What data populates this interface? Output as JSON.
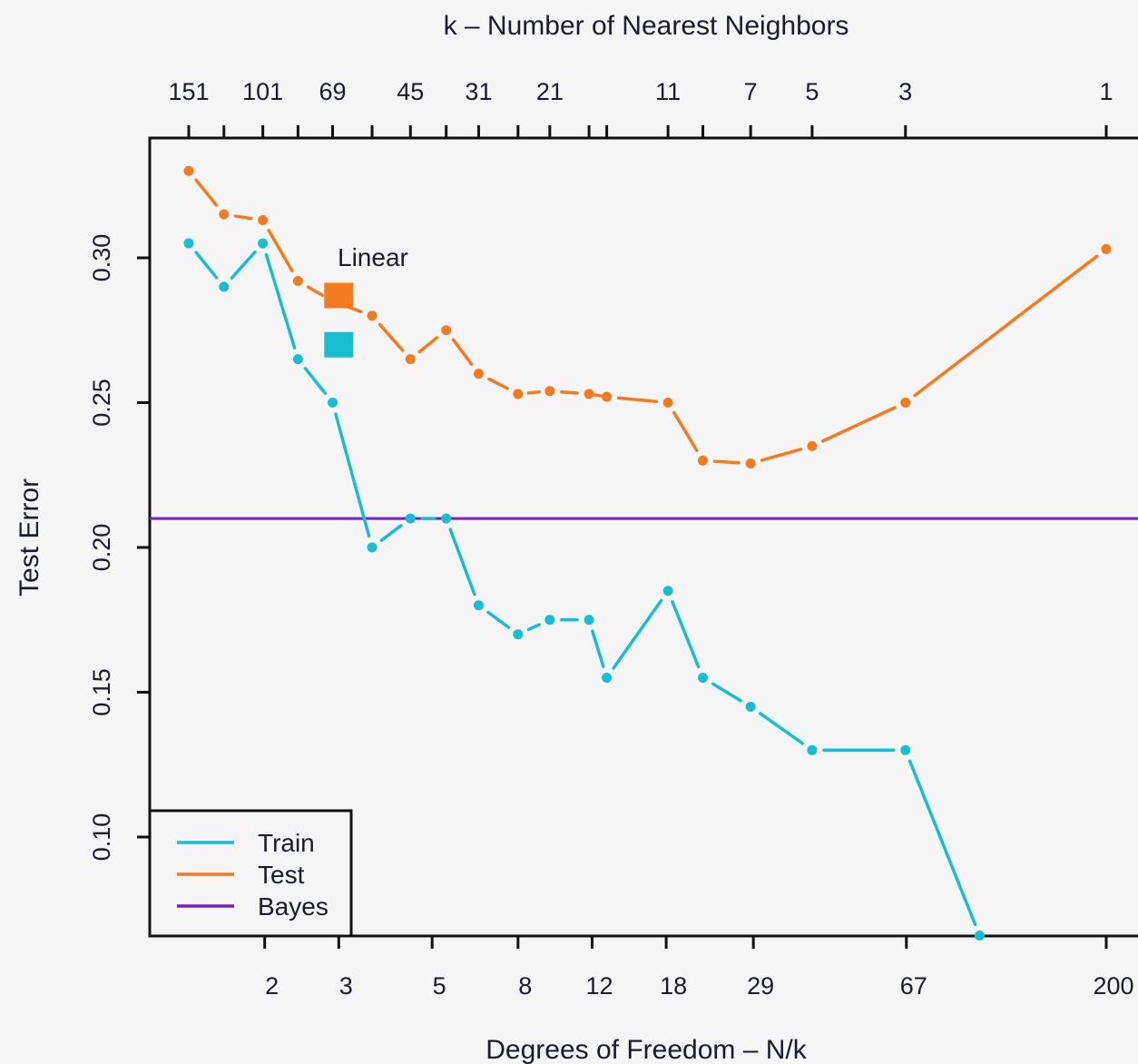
{
  "chart_data": {
    "type": "line",
    "xlabel": "Degrees of Freedom – N/k",
    "ylabel": "Test Error",
    "top_axis_label": "k –  Number of Nearest Neighbors",
    "x_scale": "log",
    "ylim": [
      0.066,
      0.34
    ],
    "grid": false,
    "legend_position": "bottom-left",
    "bottom_tick_labels": [
      "2",
      "3",
      "5",
      "8",
      "12",
      "18",
      "29",
      "67",
      "200"
    ],
    "bottom_tick_values": [
      2,
      3,
      5,
      8,
      12,
      18,
      29,
      67,
      200
    ],
    "top_tick_labels": [
      "151",
      "101",
      "69",
      "45",
      "31",
      "21",
      "11",
      "7",
      "5",
      "3",
      "1"
    ],
    "top_tick_values_df": [
      1.32,
      1.98,
      2.9,
      4.44,
      6.45,
      9.52,
      18.18,
      28.57,
      40,
      66.67,
      200
    ],
    "top_unlabeled_tick_values_df": [
      1.6,
      2.4,
      3.6,
      5.4,
      8.0,
      11.8,
      13.0,
      22.0
    ],
    "y_ticks": [
      0.1,
      0.15,
      0.2,
      0.25,
      0.3
    ],
    "y_tick_labels": [
      "0.10",
      "0.15",
      "0.20",
      "0.25",
      "0.30"
    ],
    "series": [
      {
        "name": "Train",
        "color": "#17becf",
        "x": [
          1.32,
          1.6,
          1.98,
          2.4,
          2.9,
          3.6,
          4.44,
          5.4,
          6.45,
          8.0,
          9.52,
          11.8,
          13.0,
          18.18,
          22.0,
          28.57,
          40,
          66.67,
          100
        ],
        "y": [
          0.305,
          0.29,
          0.305,
          0.265,
          0.25,
          0.2,
          0.21,
          0.21,
          0.18,
          0.17,
          0.175,
          0.175,
          0.155,
          0.185,
          0.155,
          0.145,
          0.13,
          0.13,
          0.066
        ]
      },
      {
        "name": "Test",
        "color": "#f47a20",
        "x": [
          1.32,
          1.6,
          1.98,
          2.4,
          2.9,
          3.6,
          4.44,
          5.4,
          6.45,
          8.0,
          9.52,
          11.8,
          13.0,
          18.18,
          22.0,
          28.57,
          40,
          66.67,
          200
        ],
        "y": [
          0.33,
          0.315,
          0.313,
          0.292,
          0.285,
          0.28,
          0.265,
          0.275,
          0.26,
          0.253,
          0.254,
          0.253,
          0.252,
          0.25,
          0.23,
          0.229,
          0.235,
          0.25,
          0.303
        ]
      },
      {
        "name": "Bayes",
        "color": "#7a1fc2",
        "constant": 0.21
      }
    ],
    "linear": {
      "label": "Linear",
      "df": 3,
      "test": 0.287,
      "train": 0.27,
      "test_color": "#f47a20",
      "train_color": "#17becf"
    }
  }
}
